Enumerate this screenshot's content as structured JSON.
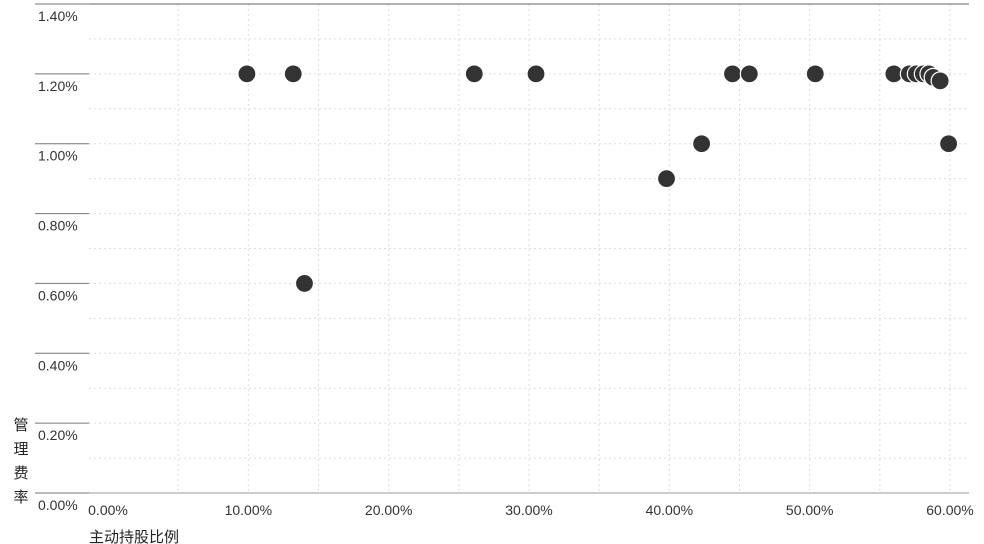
{
  "chart_data": {
    "type": "scatter",
    "xlabel": "主动持股比例",
    "ylabel": "管理费率",
    "xlim": [
      0,
      60
    ],
    "ylim": [
      0,
      1.4
    ],
    "x_ticks": [
      0,
      10,
      20,
      30,
      40,
      50,
      60
    ],
    "x_tick_labels": [
      "0.00%",
      "10.00%",
      "20.00%",
      "30.00%",
      "40.00%",
      "50.00%",
      "60.00%"
    ],
    "y_ticks": [
      0,
      0.2,
      0.4,
      0.6,
      0.8,
      1.0,
      1.2,
      1.4
    ],
    "y_tick_labels": [
      "0.00%",
      "0.20%",
      "0.40%",
      "0.60%",
      "0.80%",
      "1.00%",
      "1.20%",
      "1.40%"
    ],
    "grid": true,
    "marker_color": "#333333",
    "points": [
      {
        "x": 9.9,
        "y": 1.2
      },
      {
        "x": 13.2,
        "y": 1.2
      },
      {
        "x": 14.0,
        "y": 0.6
      },
      {
        "x": 26.1,
        "y": 1.2
      },
      {
        "x": 30.5,
        "y": 1.2
      },
      {
        "x": 39.8,
        "y": 0.9
      },
      {
        "x": 42.3,
        "y": 1.0
      },
      {
        "x": 44.5,
        "y": 1.2
      },
      {
        "x": 45.7,
        "y": 1.2
      },
      {
        "x": 50.4,
        "y": 1.2
      },
      {
        "x": 56.0,
        "y": 1.2
      },
      {
        "x": 57.1,
        "y": 1.2
      },
      {
        "x": 57.6,
        "y": 1.2
      },
      {
        "x": 58.1,
        "y": 1.2
      },
      {
        "x": 58.5,
        "y": 1.2
      },
      {
        "x": 58.8,
        "y": 1.19
      },
      {
        "x": 59.3,
        "y": 1.18
      },
      {
        "x": 59.9,
        "y": 1.0
      }
    ]
  }
}
